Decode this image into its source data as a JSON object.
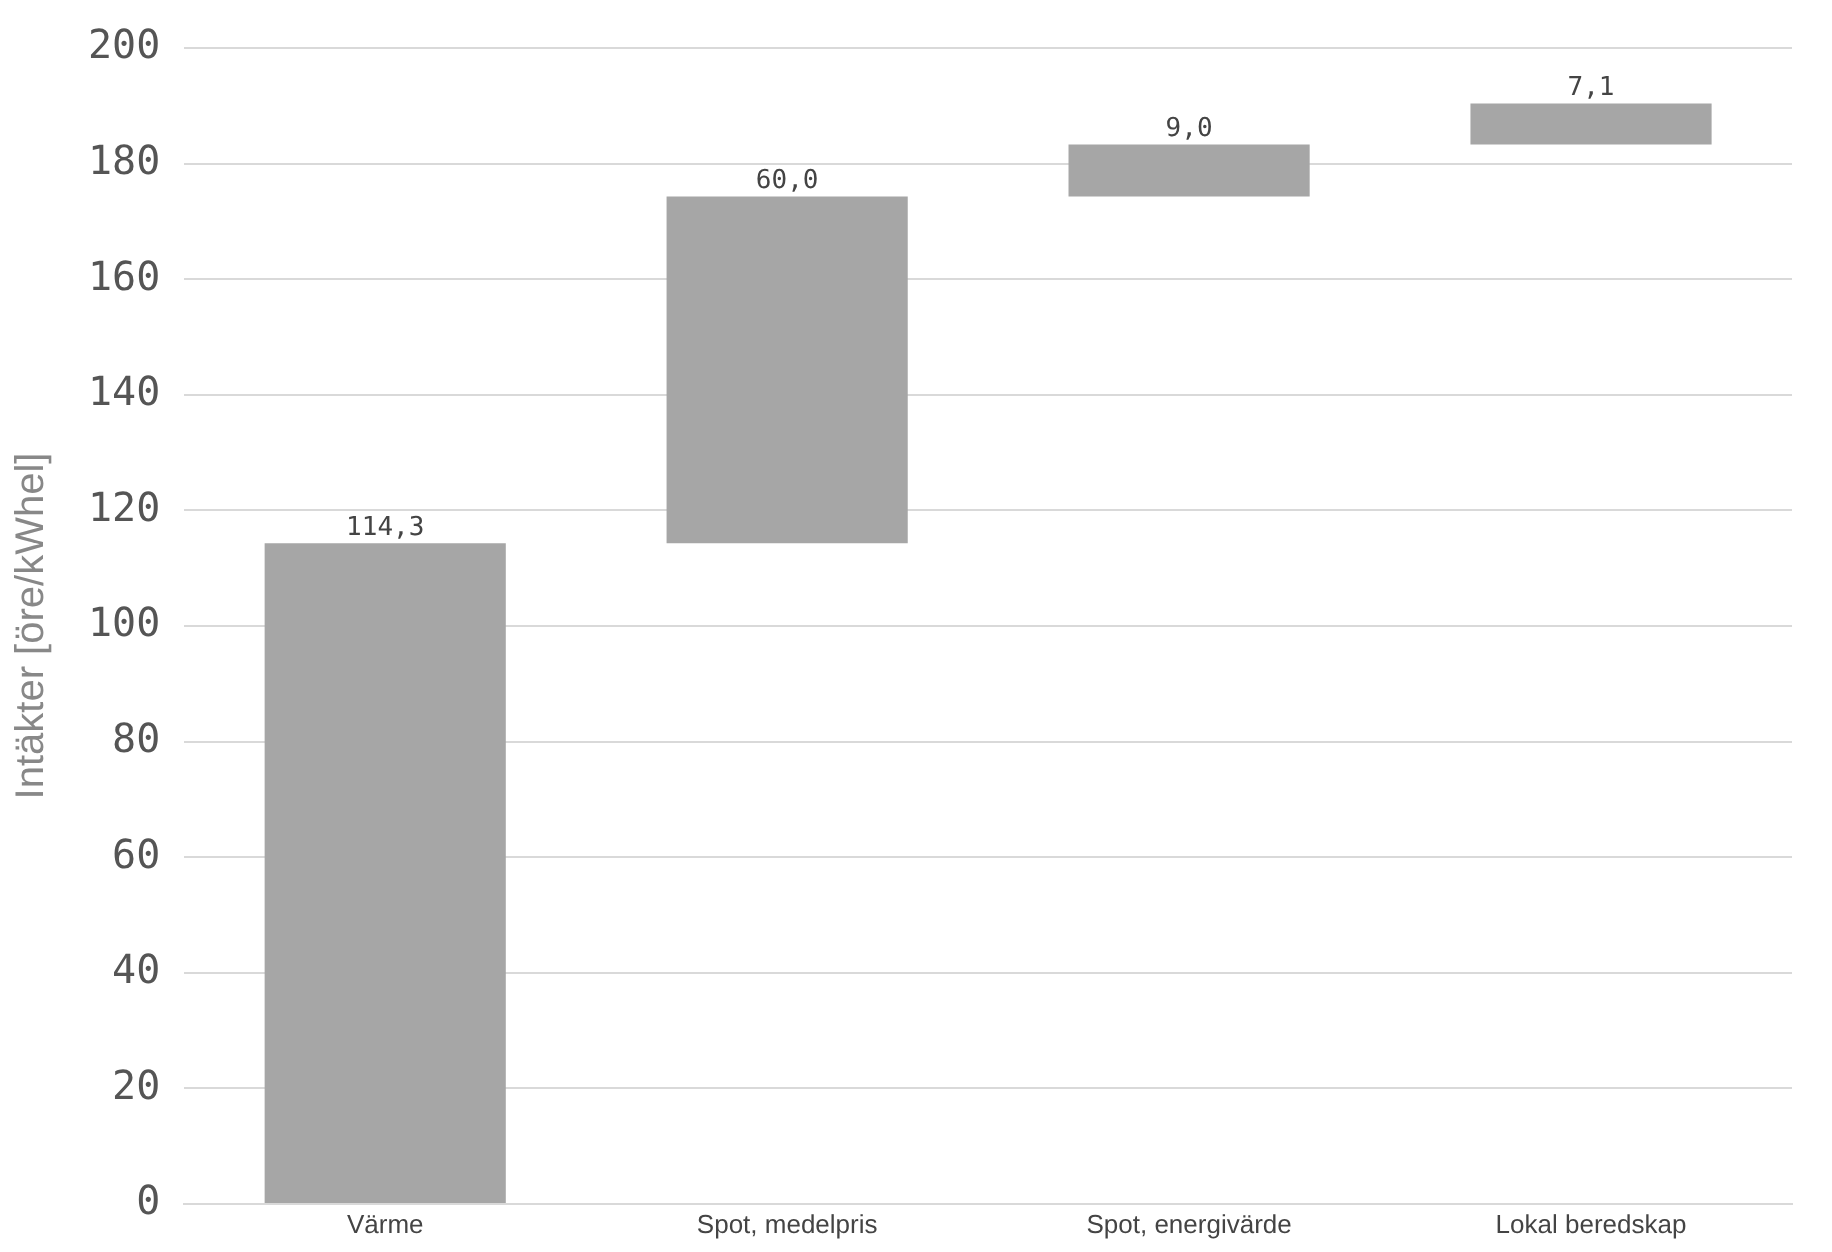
{
  "chart_data": {
    "type": "bar",
    "ylabel": "Intäkter [öre/kWhel]",
    "categories": [
      "Värme",
      "Spot, medelpris",
      "Spot, energivärde",
      "Lokal beredskap"
    ],
    "values": [
      114.3,
      60.0,
      9.0,
      7.1
    ],
    "base": [
      0,
      114.3,
      174.3,
      183.3
    ],
    "value_labels": [
      "114,3",
      "60,0",
      "9,0",
      "7,1"
    ],
    "color": "#a6a6a6",
    "ylim": [
      0,
      200
    ],
    "yticks": [
      0,
      20,
      40,
      60,
      80,
      100,
      120,
      140,
      160,
      180,
      200
    ],
    "grid": "y",
    "legend": false
  }
}
